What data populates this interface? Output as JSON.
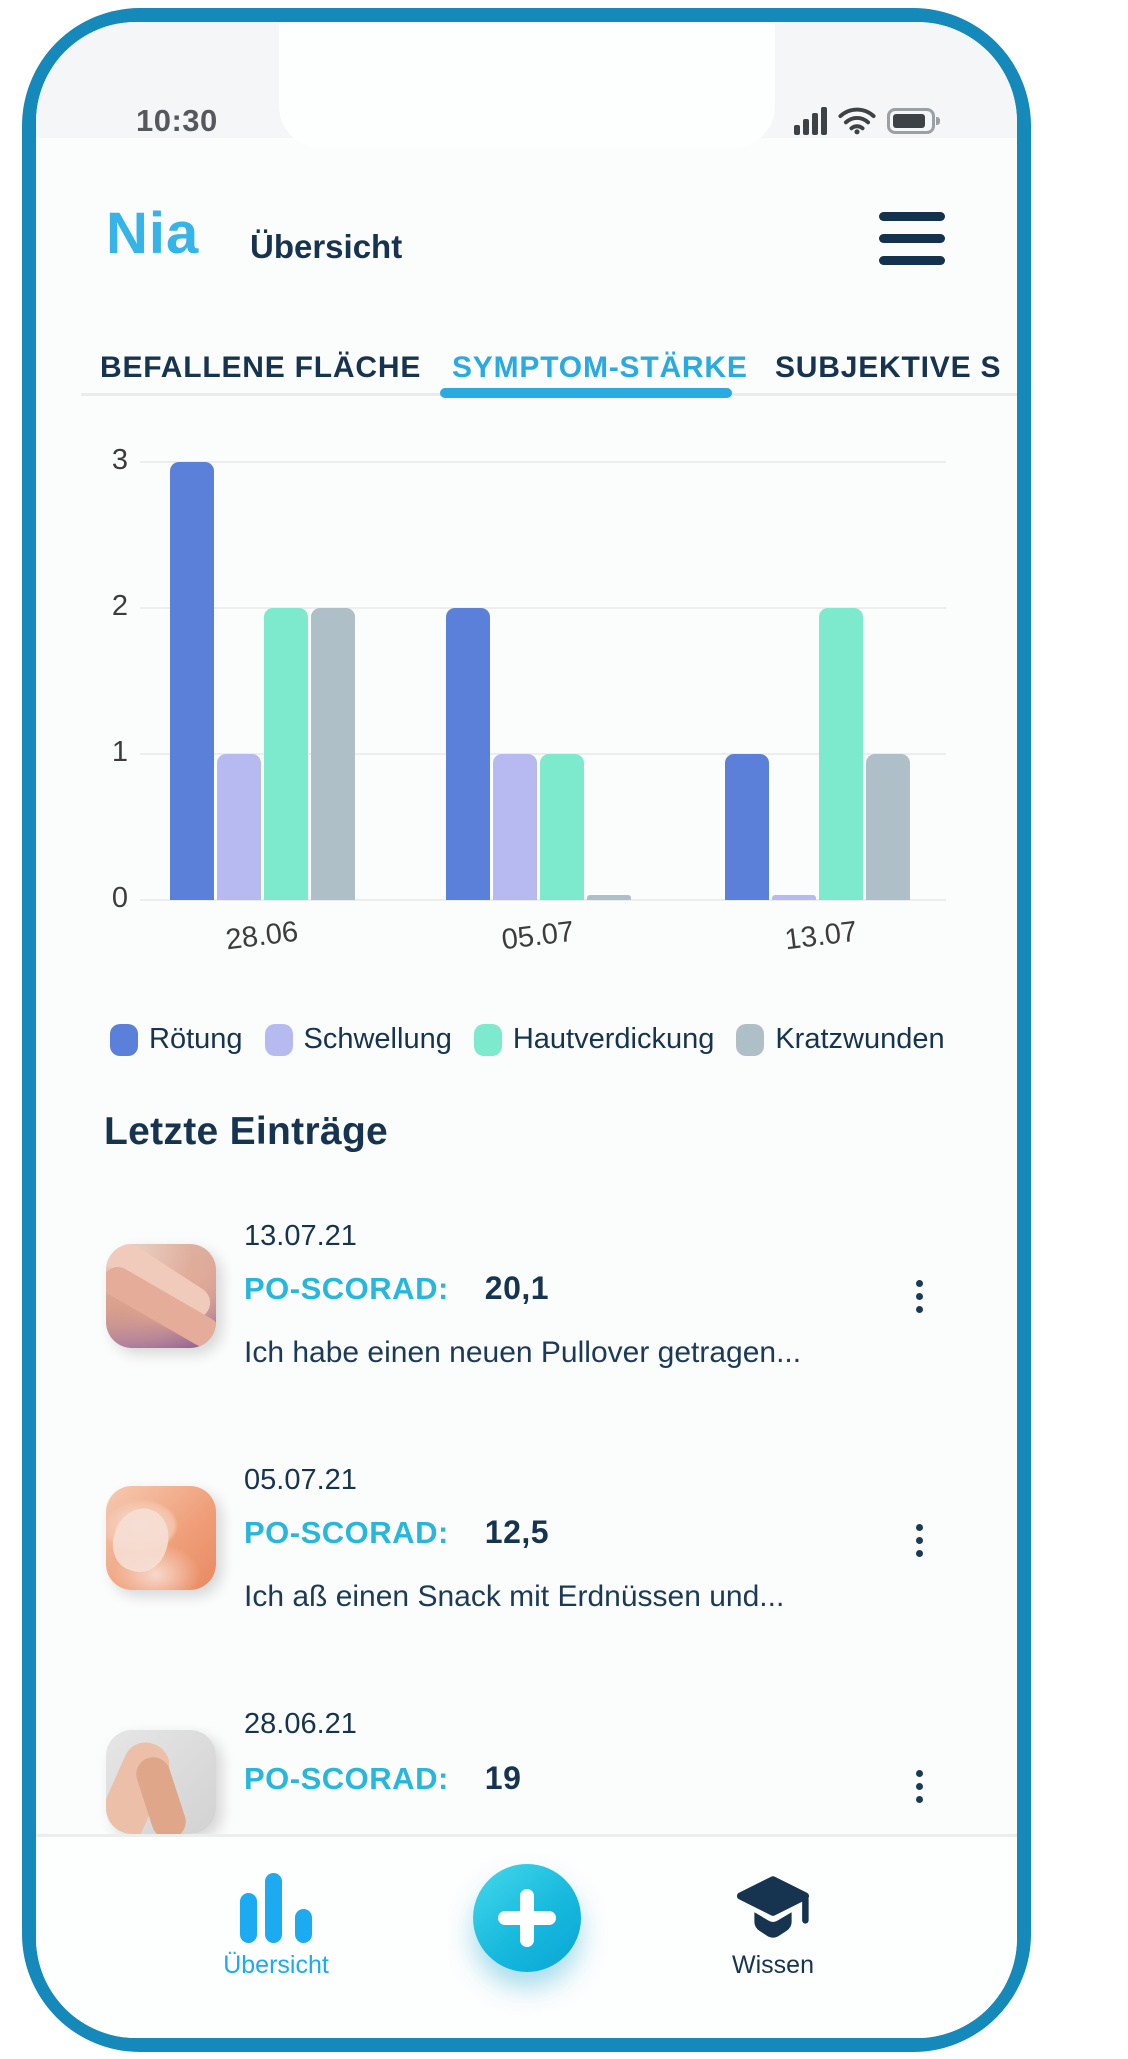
{
  "colors": {
    "frame": "#1589ba",
    "accent_blue": "#29abe2",
    "navy": "#16334f",
    "cyan": "#28b7dc",
    "nav_blue": "#1caaf1",
    "bar_blue": "#5b80d9",
    "bar_lavender": "#b7baf0",
    "bar_mint": "#7eeacd",
    "bar_gray": "#aebfc7"
  },
  "statusbar": {
    "time": "10:30",
    "icons": [
      "signal-icon",
      "wifi-icon",
      "battery-icon"
    ]
  },
  "header": {
    "logo": "Nia",
    "title": "Übersicht",
    "menu_icon": "hamburger-icon"
  },
  "tabs": {
    "items": [
      {
        "label": "BEFALLENE FLÄCHE",
        "active": false
      },
      {
        "label": "SYMPTOM-STÄRKE",
        "active": true
      },
      {
        "label": "SUBJEKTIVE S",
        "active": false
      }
    ]
  },
  "chart_data": {
    "type": "bar",
    "title": "",
    "xlabel": "",
    "ylabel": "",
    "categories": [
      "28.06",
      "05.07",
      "13.07"
    ],
    "series": [
      {
        "name": "Rötung",
        "color": "#5b80d9",
        "values": [
          3,
          2,
          1
        ]
      },
      {
        "name": "Schwellung",
        "color": "#b7baf0",
        "values": [
          1,
          1,
          0
        ]
      },
      {
        "name": "Hautverdickung",
        "color": "#7eeacd",
        "values": [
          2,
          1,
          2
        ]
      },
      {
        "name": "Kratzwunden",
        "color": "#aebfc7",
        "values": [
          2,
          0,
          1
        ]
      }
    ],
    "yticks": [
      0,
      1,
      2,
      3
    ],
    "ylim": [
      0,
      3
    ],
    "grid": true,
    "legend_position": "bottom"
  },
  "entries": {
    "title": "Letzte Einträge",
    "score_label": "PO-SCORAD:",
    "items": [
      {
        "date": "13.07.21",
        "score": "20,1",
        "description": "Ich habe einen neuen Pullover getragen...",
        "photo": "baby-hand-photo"
      },
      {
        "date": "05.07.21",
        "score": "12,5",
        "description": "Ich aß einen Snack mit Erdnüssen und...",
        "photo": "fingertips-photo"
      },
      {
        "date": "28.06.21",
        "score": "19",
        "description": "",
        "photo": "hand-photo"
      }
    ]
  },
  "bottom_nav": {
    "items": [
      {
        "label": "Übersicht",
        "icon": "bar-chart-icon",
        "active": true
      },
      {
        "label": "",
        "icon": "plus-icon",
        "active": false
      },
      {
        "label": "Wissen",
        "icon": "graduation-cap-icon",
        "active": false
      }
    ]
  }
}
